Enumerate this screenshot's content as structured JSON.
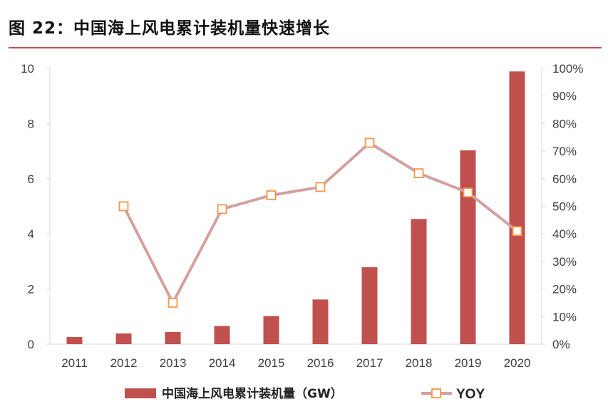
{
  "figure": {
    "label": "图 22：",
    "title": "中国海上风电累计装机量快速增长"
  },
  "chart_data": {
    "type": "bar+line",
    "categories": [
      "2011",
      "2012",
      "2013",
      "2014",
      "2015",
      "2016",
      "2017",
      "2018",
      "2019",
      "2020"
    ],
    "series": [
      {
        "name": "中国海上风电累计装机量（GW）",
        "type": "bar",
        "axis": "left",
        "color": "#c0504d",
        "values": [
          0.26,
          0.39,
          0.44,
          0.66,
          1.02,
          1.62,
          2.79,
          4.54,
          7.03,
          9.89
        ]
      },
      {
        "name": "YOY",
        "type": "line",
        "axis": "right",
        "color": "#d4a0a0",
        "marker_color": "#f79646",
        "values": [
          null,
          0.5,
          0.15,
          0.49,
          0.54,
          0.57,
          0.73,
          0.62,
          0.55,
          0.41
        ]
      }
    ],
    "y_left": {
      "ylim": [
        0,
        10
      ],
      "ticks": [
        "0",
        "2",
        "4",
        "6",
        "8",
        "10"
      ]
    },
    "y_right": {
      "ylim": [
        0,
        1
      ],
      "ticks": [
        "0%",
        "10%",
        "20%",
        "30%",
        "40%",
        "50%",
        "60%",
        "70%",
        "80%",
        "90%",
        "100%"
      ]
    },
    "legend": {
      "position": "bottom",
      "items": [
        "中国海上风电累计装机量（GW）",
        "YOY"
      ]
    }
  }
}
